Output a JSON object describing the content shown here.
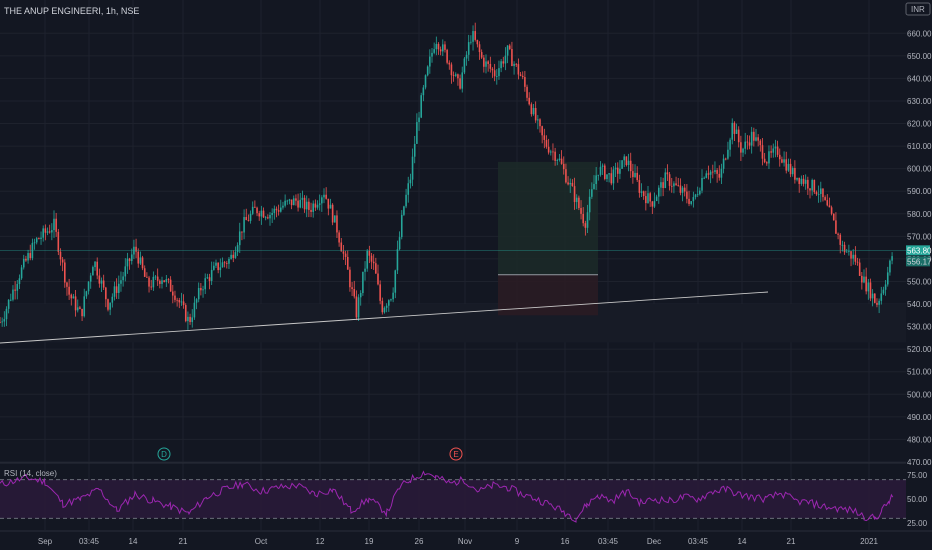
{
  "header": {
    "title": "THE ANUP ENGINEERI, 1h, NSE",
    "currency": "INR"
  },
  "colors": {
    "background": "#131722",
    "up": "#26a69a",
    "down": "#ef5350",
    "rsi_line": "#9c27b0",
    "rsi_band": "#2a1a3a",
    "trendline": "#c8c8c8",
    "target_zone": "#1c2a28",
    "stop_zone": "#2a1c24"
  },
  "chart_data": {
    "type": "candlestick",
    "symbol": "THE ANUP ENGINEERI",
    "interval": "1h",
    "exchange": "NSE",
    "ylim": [
      470,
      665
    ],
    "y_ticks": [
      470,
      480,
      490,
      500,
      510,
      520,
      530,
      540,
      550,
      560,
      570,
      580,
      590,
      600,
      610,
      620,
      630,
      640,
      650,
      660
    ],
    "y_tick_labels": [
      "470.00",
      "480.00",
      "490.00",
      "500.00",
      "510.00",
      "520.00",
      "530.00",
      "540.00",
      "550.00",
      "560.00",
      "570.00",
      "580.00",
      "590.00",
      "600.00",
      "610.00",
      "620.00",
      "630.00",
      "640.00",
      "650.00",
      "660.00"
    ],
    "x_tick_labels": [
      "Sep",
      "03:45",
      "14",
      "21",
      "Oct",
      "12",
      "19",
      "26",
      "Nov",
      "9",
      "16",
      "03:45",
      "Dec",
      "03:45",
      "14",
      "21",
      "2021"
    ],
    "price_path": [
      [
        0,
        532
      ],
      [
        2,
        535
      ],
      [
        10,
        552
      ],
      [
        20,
        568
      ],
      [
        30,
        575
      ],
      [
        38,
        545
      ],
      [
        45,
        535
      ],
      [
        52,
        560
      ],
      [
        60,
        540
      ],
      [
        68,
        552
      ],
      [
        75,
        565
      ],
      [
        82,
        548
      ],
      [
        90,
        552
      ],
      [
        97,
        545
      ],
      [
        105,
        532
      ],
      [
        112,
        548
      ],
      [
        120,
        556
      ],
      [
        128,
        560
      ],
      [
        135,
        575
      ],
      [
        142,
        582
      ],
      [
        150,
        580
      ],
      [
        158,
        584
      ],
      [
        165,
        586
      ],
      [
        172,
        582
      ],
      [
        180,
        590
      ],
      [
        187,
        574
      ],
      [
        193,
        555
      ],
      [
        198,
        536
      ],
      [
        204,
        562
      ],
      [
        208,
        556
      ],
      [
        212,
        538
      ],
      [
        218,
        545
      ],
      [
        224,
        582
      ],
      [
        228,
        596
      ],
      [
        232,
        622
      ],
      [
        238,
        645
      ],
      [
        242,
        658
      ],
      [
        248,
        650
      ],
      [
        255,
        636
      ],
      [
        262,
        660
      ],
      [
        268,
        648
      ],
      [
        275,
        642
      ],
      [
        282,
        652
      ],
      [
        290,
        640
      ],
      [
        296,
        625
      ],
      [
        302,
        612
      ],
      [
        310,
        605
      ],
      [
        318,
        590
      ],
      [
        325,
        576
      ],
      [
        332,
        600
      ],
      [
        340,
        596
      ],
      [
        348,
        604
      ],
      [
        356,
        590
      ],
      [
        362,
        585
      ],
      [
        370,
        596
      ],
      [
        378,
        590
      ],
      [
        385,
        585
      ],
      [
        392,
        600
      ],
      [
        400,
        596
      ],
      [
        407,
        620
      ],
      [
        412,
        608
      ],
      [
        418,
        615
      ],
      [
        426,
        604
      ],
      [
        432,
        608
      ],
      [
        440,
        598
      ],
      [
        448,
        594
      ],
      [
        455,
        590
      ],
      [
        462,
        578
      ],
      [
        468,
        565
      ],
      [
        475,
        560
      ],
      [
        480,
        550
      ],
      [
        484,
        545
      ],
      [
        487,
        540
      ],
      [
        490,
        546
      ],
      [
        494,
        556
      ],
      [
        496,
        563
      ]
    ],
    "last_price": 563.8,
    "last_price_label": "563.80",
    "secondary_price_label": "556.17",
    "trendline": {
      "from": {
        "x": "Aug (start)",
        "y": 520
      },
      "to": {
        "x": "Dec 03:45",
        "y": 545
      }
    },
    "support_zone": [
      523,
      540
    ],
    "position": {
      "entry": 553,
      "target": 603,
      "stop": 535
    },
    "events": [
      "D",
      "E"
    ],
    "rsi": {
      "label": "RSI (14, close)",
      "ylim": [
        20,
        80
      ],
      "ticks": [
        75,
        50,
        25
      ],
      "tick_labels": [
        "75.00",
        "50.00",
        "25.00"
      ],
      "band": [
        30,
        70
      ],
      "values": [
        [
          0,
          65
        ],
        [
          15,
          72
        ],
        [
          25,
          68
        ],
        [
          35,
          45
        ],
        [
          45,
          50
        ],
        [
          55,
          60
        ],
        [
          65,
          38
        ],
        [
          75,
          55
        ],
        [
          85,
          48
        ],
        [
          95,
          42
        ],
        [
          105,
          35
        ],
        [
          115,
          52
        ],
        [
          125,
          60
        ],
        [
          135,
          66
        ],
        [
          145,
          58
        ],
        [
          155,
          62
        ],
        [
          165,
          64
        ],
        [
          175,
          55
        ],
        [
          185,
          60
        ],
        [
          195,
          38
        ],
        [
          205,
          50
        ],
        [
          215,
          36
        ],
        [
          222,
          62
        ],
        [
          228,
          70
        ],
        [
          236,
          78
        ],
        [
          242,
          73
        ],
        [
          250,
          66
        ],
        [
          258,
          70
        ],
        [
          266,
          58
        ],
        [
          274,
          64
        ],
        [
          282,
          62
        ],
        [
          290,
          55
        ],
        [
          298,
          50
        ],
        [
          306,
          44
        ],
        [
          314,
          36
        ],
        [
          320,
          30
        ],
        [
          326,
          44
        ],
        [
          332,
          54
        ],
        [
          340,
          48
        ],
        [
          348,
          58
        ],
        [
          356,
          46
        ],
        [
          364,
          50
        ],
        [
          372,
          48
        ],
        [
          380,
          52
        ],
        [
          388,
          50
        ],
        [
          396,
          58
        ],
        [
          404,
          60
        ],
        [
          410,
          55
        ],
        [
          418,
          52
        ],
        [
          426,
          50
        ],
        [
          434,
          56
        ],
        [
          442,
          48
        ],
        [
          450,
          46
        ],
        [
          458,
          42
        ],
        [
          466,
          40
        ],
        [
          474,
          38
        ],
        [
          480,
          32
        ],
        [
          486,
          30
        ],
        [
          490,
          38
        ],
        [
          494,
          48
        ],
        [
          496,
          52
        ]
      ]
    }
  }
}
